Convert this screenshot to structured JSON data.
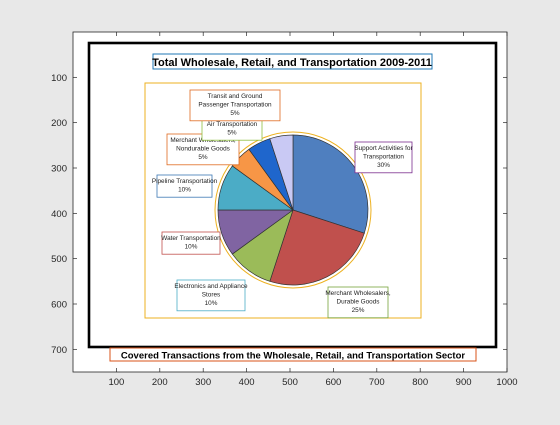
{
  "chart_data": {
    "type": "pie",
    "title": "Total Wholesale, Retail, and Transportation 2009-2011",
    "xlabel": "Covered Transactions from the Wholesale, Retail, and Transportation Sector",
    "x_ticks": [
      100,
      200,
      300,
      400,
      500,
      600,
      700,
      800,
      900,
      1000
    ],
    "y_ticks": [
      100,
      200,
      300,
      400,
      500,
      600,
      700
    ],
    "xlim": [
      0,
      1000
    ],
    "ylim": [
      750,
      0
    ],
    "slices": [
      {
        "lines": [
          "Support Activities for",
          "Transportation",
          "30%"
        ],
        "value": 30,
        "color": "#4f7fbf",
        "box_color": "#7b2d8e"
      },
      {
        "lines": [
          "Merchant Wholesalers,",
          "Durable Goods",
          "25%"
        ],
        "value": 25,
        "color": "#c0504d",
        "box_color": "#77a33a"
      },
      {
        "lines": [
          "Electronics and Appliance",
          "Stores",
          "10%"
        ],
        "value": 10,
        "color": "#9bbb59",
        "box_color": "#4bacc6"
      },
      {
        "lines": [
          "Water Transportation",
          "10%"
        ],
        "value": 10,
        "color": "#8064a2",
        "box_color": "#c0504d"
      },
      {
        "lines": [
          "Pipeline Transportation",
          "10%"
        ],
        "value": 10,
        "color": "#4bacc6",
        "box_color": "#3c78b4"
      },
      {
        "lines": [
          "Merchant Wholesalers,",
          "Nondurable Goods",
          "5%"
        ],
        "value": 5,
        "color": "#f79646",
        "box_color": "#e06a20"
      },
      {
        "lines": [
          "Air Transportation",
          "5%"
        ],
        "value": 5,
        "color": "#1f66cc",
        "box_color": "#8fbf3f"
      },
      {
        "lines": [
          "Transit and Ground",
          "Passenger Transportation",
          "5%"
        ],
        "value": 5,
        "color": "#c9c9f4",
        "box_color": "#e06a20"
      }
    ],
    "colors": {
      "title_box": "#1f77b4",
      "xlabel_box": "#d95319",
      "outline": "#edb120",
      "frame": "#000000"
    }
  }
}
